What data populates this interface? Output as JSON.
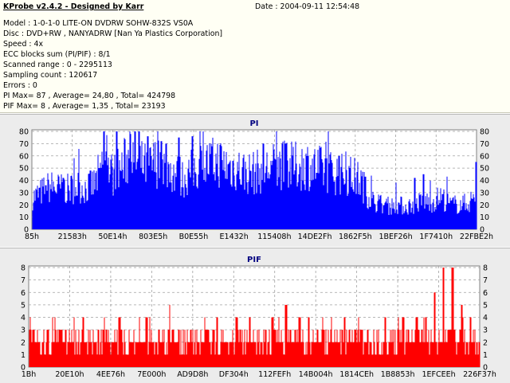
{
  "info": {
    "title": "KProbe v2.4.2 - Designed by Karr",
    "date": "Date : 2004-09-11 12:54:48",
    "model": "Model : 1-0-1-0 LITE-ON DVDRW SOHW-832S  VS0A",
    "disc": "Disc : DVD+RW , NANYADRW [Nan Ya Plastics Corporation]",
    "speed": "Speed : 4x",
    "ecc_sum": "ECC blocks sum (PI/PIF) : 8/1",
    "scanned_range": "Scanned range : 0 - 2295113",
    "sampling_count": "Sampling count : 120617",
    "errors": "Errors : 0",
    "pi_stats": "PI Max= 87 , Average= 24,80 , Total= 424798",
    "pif_stats": "PIF Max= 8 , Average= 1,35 , Total= 23193"
  },
  "colors": {
    "pi": "#0000ff",
    "pif": "#ff0000",
    "plot_bg": "#ffffff",
    "panel_bg": "#ececec",
    "title": "#000080"
  },
  "chart_data": [
    {
      "type": "bar",
      "title": "PI",
      "ylim": [
        0,
        87
      ],
      "yticks": [
        0,
        10,
        20,
        30,
        40,
        50,
        60,
        70,
        80
      ],
      "xticks": [
        "85h",
        "21583h",
        "50E14h",
        "803E5h",
        "B0E55h",
        "E1432h",
        "115408h",
        "14DE2Fh",
        "1862F5h",
        "1BEF26h",
        "1F7410h",
        "22FBE2h"
      ],
      "grid": true,
      "x": [
        0,
        0.02,
        0.04,
        0.06,
        0.08,
        0.1,
        0.12,
        0.14,
        0.16,
        0.18,
        0.2,
        0.22,
        0.24,
        0.26,
        0.28,
        0.3,
        0.32,
        0.34,
        0.36,
        0.38,
        0.4,
        0.42,
        0.44,
        0.46,
        0.48,
        0.5,
        0.52,
        0.54,
        0.56,
        0.58,
        0.6,
        0.62,
        0.64,
        0.66,
        0.68,
        0.7,
        0.72,
        0.74,
        0.76,
        0.78,
        0.8,
        0.82,
        0.84,
        0.86,
        0.88,
        0.9,
        0.92,
        0.94,
        0.96,
        0.98,
        1.0
      ],
      "values": [
        28,
        33,
        38,
        36,
        35,
        38,
        36,
        40,
        60,
        48,
        55,
        65,
        58,
        54,
        60,
        56,
        50,
        45,
        52,
        57,
        58,
        60,
        55,
        54,
        50,
        50,
        52,
        55,
        57,
        55,
        56,
        57,
        54,
        52,
        50,
        48,
        47,
        42,
        27,
        23,
        20,
        22,
        20,
        22,
        25,
        24,
        29,
        22,
        22,
        23,
        30
      ],
      "peaks": [
        36,
        42,
        48,
        50,
        83,
        85,
        85,
        86,
        84,
        76,
        72,
        70,
        75,
        76,
        70,
        70,
        60,
        43,
        42,
        45,
        55
      ],
      "peak_x": [
        0.03,
        0.07,
        0.13,
        0.15,
        0.16,
        0.19,
        0.22,
        0.23,
        0.24,
        0.26,
        0.29,
        0.3,
        0.33,
        0.36,
        0.52,
        0.57,
        0.69,
        0.75,
        0.86,
        0.88,
        1.0
      ]
    },
    {
      "type": "bar",
      "title": "PIF",
      "ylim": [
        0,
        8
      ],
      "yticks": [
        0,
        1,
        2,
        3,
        4,
        5,
        6,
        7,
        8
      ],
      "xticks": [
        "1Bh",
        "20E10h",
        "4EE76h",
        "7E000h",
        "AD9D8h",
        "DF304h",
        "112FEFh",
        "14B004h",
        "1814CEh",
        "1B8853h",
        "1EFCEEh",
        "226F37h"
      ],
      "grid": true,
      "values_pattern": [
        3,
        2,
        2,
        3,
        2,
        2,
        2,
        3,
        2,
        2,
        2,
        2,
        3,
        2,
        2,
        3,
        2,
        2,
        2,
        3,
        2,
        2,
        3,
        2,
        2,
        2,
        2,
        3,
        2,
        2,
        2,
        2,
        3,
        2,
        2,
        2,
        3,
        2,
        2,
        2,
        2,
        2,
        3,
        2,
        2,
        2,
        3,
        2,
        2,
        2,
        2
      ],
      "peak_x": [
        0.0,
        0.04,
        0.12,
        0.2,
        0.26,
        0.31,
        0.39,
        0.46,
        0.49,
        0.54,
        0.57,
        0.6,
        0.62,
        0.65,
        0.7,
        0.73,
        0.79,
        0.83,
        0.86,
        0.88,
        0.9,
        0.92,
        0.94,
        0.96,
        0.98
      ],
      "peaks": [
        4,
        3,
        4,
        4,
        4,
        5,
        4,
        4,
        4,
        4,
        5,
        4,
        4,
        4,
        4,
        4,
        4,
        4,
        4,
        4,
        6,
        8,
        8,
        5,
        4
      ]
    }
  ]
}
